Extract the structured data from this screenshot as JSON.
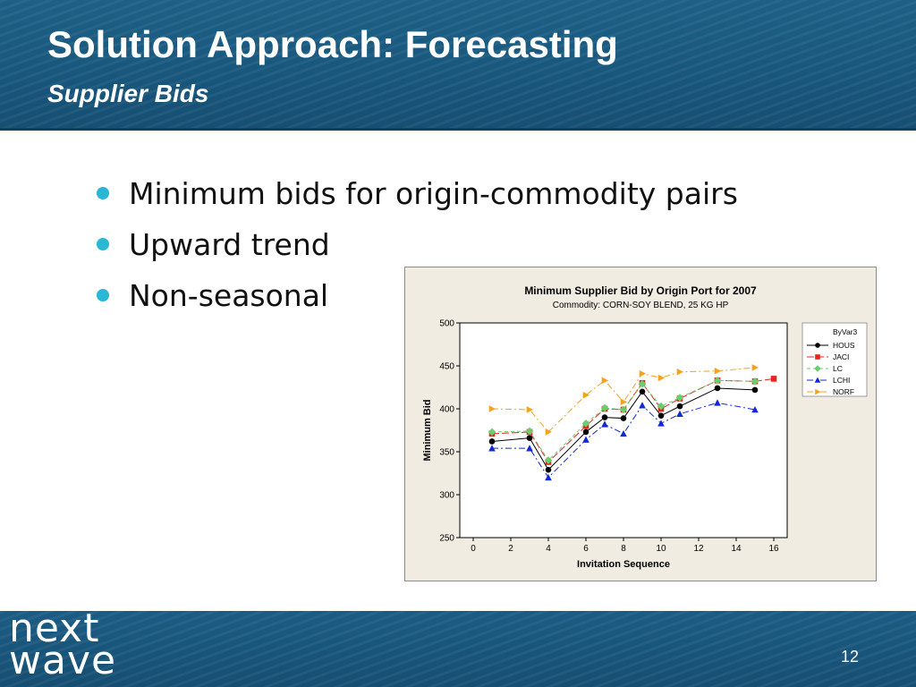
{
  "slide": {
    "title": "Solution Approach:  Forecasting",
    "subtitle": "Supplier Bids",
    "bullets": [
      "Minimum bids for origin-commodity pairs",
      "Upward trend",
      "Non-seasonal"
    ],
    "page_number": "12"
  },
  "logo": {
    "line1": "next",
    "line2": "wave"
  },
  "chart_data": {
    "type": "line",
    "title": "Minimum Supplier Bid by Origin Port for 2007",
    "subtitle": "Commodity: CORN-SOY BLEND, 25 KG HP",
    "xlabel": "Invitation Sequence",
    "ylabel": "Minimum Bid",
    "xlim": [
      0,
      16
    ],
    "ylim": [
      250,
      500
    ],
    "xticks": [
      0,
      2,
      4,
      6,
      8,
      10,
      12,
      14,
      16
    ],
    "yticks": [
      250,
      300,
      350,
      400,
      450,
      500
    ],
    "grid": false,
    "legend_title": "ByVar3",
    "legend_position": "top-right",
    "series": [
      {
        "name": "HOUS",
        "color": "#000000",
        "marker": "circle",
        "dash": "solid",
        "points": [
          [
            1,
            362
          ],
          [
            3,
            366
          ],
          [
            4,
            329
          ],
          [
            6,
            373
          ],
          [
            7,
            390
          ],
          [
            8,
            389
          ],
          [
            9,
            420
          ],
          [
            10,
            392
          ],
          [
            11,
            403
          ],
          [
            13,
            424
          ],
          [
            15,
            422
          ]
        ]
      },
      {
        "name": "JACI",
        "color": "#e8241f",
        "marker": "square",
        "dash": "longdash",
        "points": [
          [
            1,
            371
          ],
          [
            3,
            373
          ],
          [
            4,
            338
          ],
          [
            6,
            380
          ],
          [
            7,
            400
          ],
          [
            8,
            399
          ],
          [
            9,
            430
          ],
          [
            10,
            400
          ],
          [
            11,
            412
          ],
          [
            13,
            433
          ],
          [
            15,
            432
          ],
          [
            16,
            435
          ]
        ]
      },
      {
        "name": "LC",
        "color": "#6ccd6c",
        "marker": "diamond",
        "dash": "dash",
        "points": [
          [
            1,
            373
          ],
          [
            3,
            374
          ],
          [
            4,
            340
          ],
          [
            6,
            383
          ],
          [
            7,
            401
          ],
          [
            8,
            399
          ],
          [
            9,
            429
          ],
          [
            10,
            403
          ],
          [
            11,
            413
          ],
          [
            13,
            433
          ],
          [
            15,
            432
          ]
        ]
      },
      {
        "name": "LCHI",
        "color": "#1428d8",
        "marker": "triangle-up",
        "dash": "dashdot",
        "points": [
          [
            1,
            354
          ],
          [
            3,
            354
          ],
          [
            4,
            320
          ],
          [
            6,
            364
          ],
          [
            7,
            382
          ],
          [
            8,
            371
          ],
          [
            9,
            404
          ],
          [
            10,
            383
          ],
          [
            11,
            394
          ],
          [
            13,
            407
          ],
          [
            15,
            399
          ]
        ]
      },
      {
        "name": "NORF",
        "color": "#f5a21c",
        "marker": "triangle-right",
        "dash": "dashdot",
        "points": [
          [
            1,
            400
          ],
          [
            3,
            399
          ],
          [
            4,
            373
          ],
          [
            6,
            416
          ],
          [
            7,
            433
          ],
          [
            8,
            408
          ],
          [
            9,
            441
          ],
          [
            10,
            436
          ],
          [
            11,
            443
          ],
          [
            13,
            444
          ],
          [
            15,
            448
          ]
        ]
      }
    ]
  }
}
